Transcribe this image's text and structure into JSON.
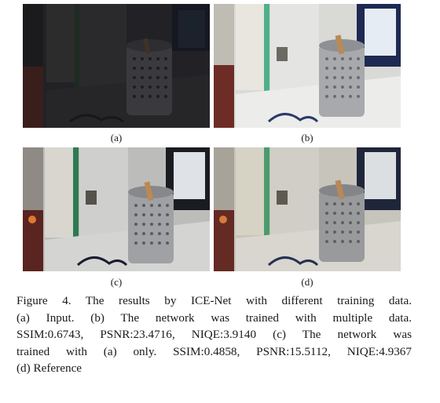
{
  "figure": {
    "panels": [
      {
        "id": "a",
        "label": "(a)",
        "tone": "dark"
      },
      {
        "id": "b",
        "label": "(b)",
        "tone": "bright"
      },
      {
        "id": "c",
        "label": "(c)",
        "tone": "contrast"
      },
      {
        "id": "d",
        "label": "(d)",
        "tone": "reference"
      }
    ],
    "caption": {
      "line1": "Figure 4. The results by ICE-Net with different training data.",
      "line2": "(a) Input.   (b) The network was trained with multiple data.",
      "line3": "SSIM:0.6743, PSNR:23.4716, NIQE:3.9140 (c) The network was",
      "line4": "trained with (a) only. SSIM:0.4858, PSNR:15.5112, NIQE:4.9367",
      "line5": "(d) Reference"
    }
  }
}
